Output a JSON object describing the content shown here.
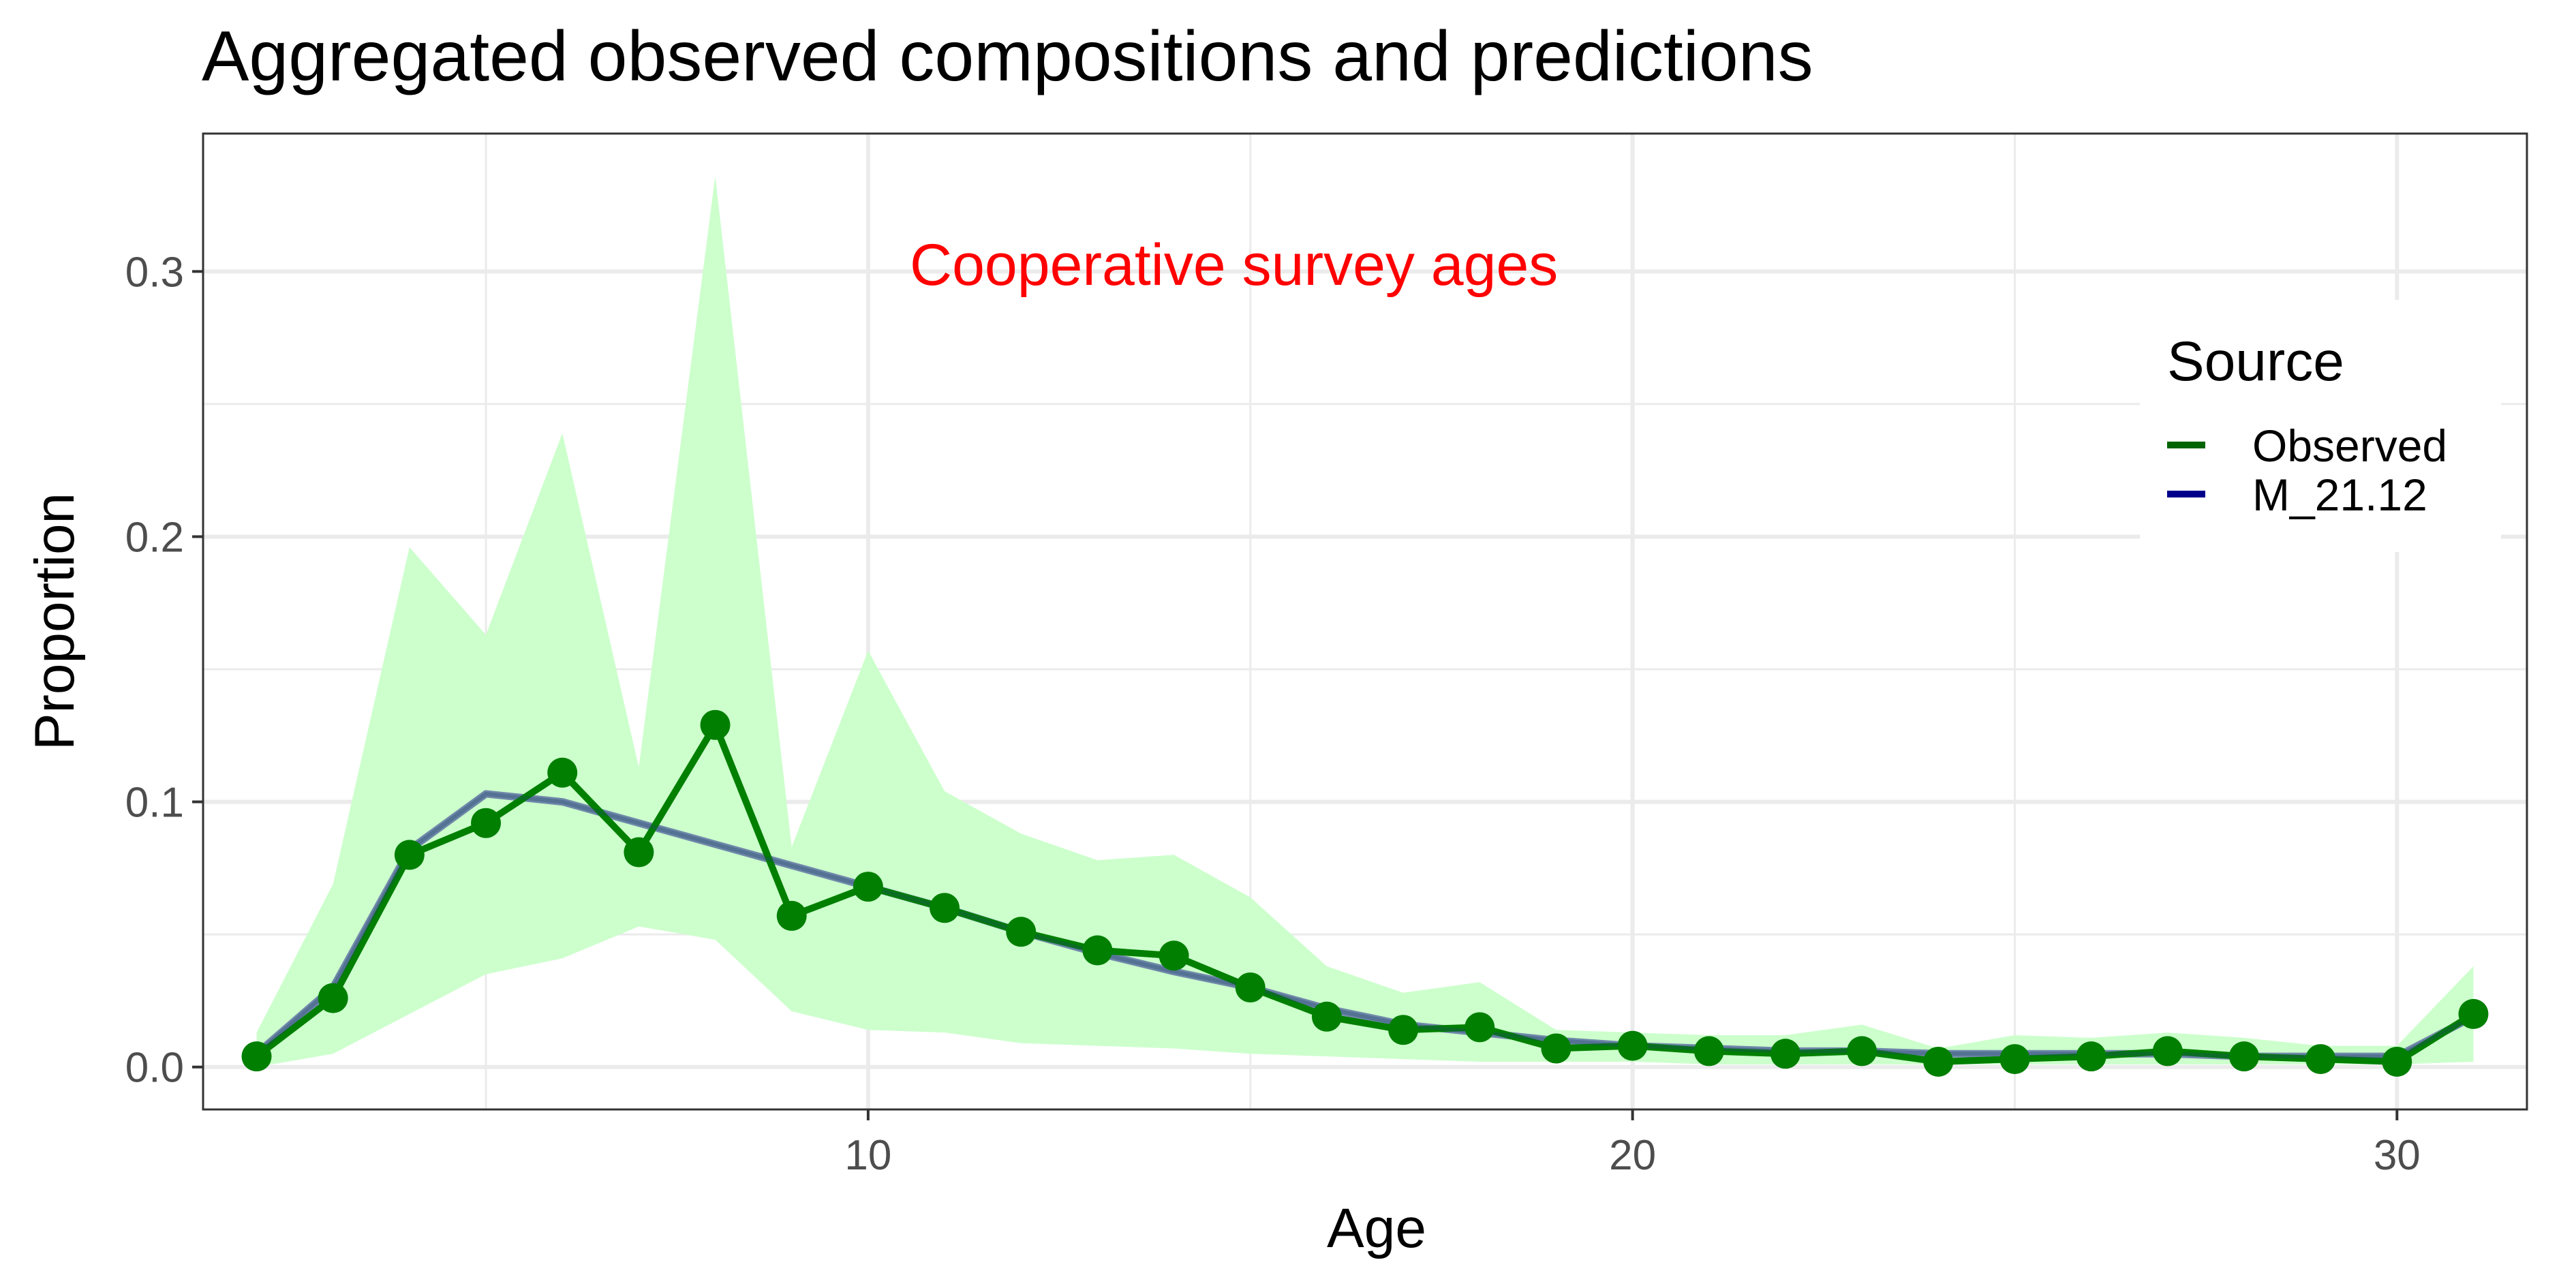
{
  "chart_data": {
    "type": "line",
    "title": "Aggregated observed compositions and predictions",
    "xlabel": "Age",
    "ylabel": "Proportion",
    "xlim": [
      1.3,
      31.7
    ],
    "ylim": [
      -0.016,
      0.352
    ],
    "x_ticks": [
      10,
      20,
      30
    ],
    "x_tick_labels": [
      "10",
      "20",
      "30"
    ],
    "y_ticks": [
      0.0,
      0.1,
      0.2,
      0.3
    ],
    "y_tick_labels": [
      "0.0",
      "0.1",
      "0.2",
      "0.3"
    ],
    "grid": true,
    "annotation": "Cooperative survey ages",
    "legend": {
      "title": "Source",
      "position": "right",
      "entries": [
        {
          "label": "Observed",
          "color": "#006400"
        },
        {
          "label": "M_21.12",
          "color": "#00008b"
        }
      ]
    },
    "x": [
      2,
      3,
      4,
      5,
      6,
      7,
      8,
      9,
      10,
      11,
      12,
      13,
      14,
      15,
      16,
      17,
      18,
      19,
      20,
      21,
      22,
      23,
      24,
      25,
      26,
      27,
      28,
      29,
      30,
      31
    ],
    "band": {
      "color": "#ccffcc",
      "upper": [
        0.013,
        0.069,
        0.196,
        0.163,
        0.239,
        0.113,
        0.336,
        0.083,
        0.157,
        0.104,
        0.088,
        0.078,
        0.08,
        0.064,
        0.038,
        0.028,
        0.032,
        0.014,
        0.013,
        0.012,
        0.012,
        0.016,
        0.007,
        0.012,
        0.011,
        0.013,
        0.011,
        0.008,
        0.008,
        0.038
      ],
      "lower": [
        0.0,
        0.005,
        0.02,
        0.035,
        0.041,
        0.053,
        0.048,
        0.021,
        0.014,
        0.013,
        0.009,
        0.008,
        0.007,
        0.005,
        0.004,
        0.003,
        0.002,
        0.002,
        0.002,
        0.001,
        0.001,
        0.001,
        0.001,
        0.001,
        0.001,
        0.001,
        0.001,
        0.001,
        0.001,
        0.002
      ]
    },
    "series": [
      {
        "name": "Observed",
        "color": "#007f00",
        "values": [
          0.004,
          0.026,
          0.08,
          0.092,
          0.111,
          0.081,
          0.129,
          0.057,
          0.068,
          0.06,
          0.051,
          0.044,
          0.042,
          0.03,
          0.019,
          0.014,
          0.015,
          0.007,
          0.008,
          0.006,
          0.005,
          0.006,
          0.002,
          0.003,
          0.004,
          0.006,
          0.004,
          0.003,
          0.002,
          0.02
        ]
      },
      {
        "name": "M_21.12",
        "color": "#6a82a8",
        "values": [
          0.005,
          0.03,
          0.082,
          0.103,
          0.1,
          0.092,
          0.084,
          0.076,
          0.068,
          0.06,
          0.051,
          0.043,
          0.036,
          0.03,
          0.022,
          0.016,
          0.013,
          0.01,
          0.008,
          0.007,
          0.006,
          0.006,
          0.005,
          0.005,
          0.005,
          0.005,
          0.004,
          0.004,
          0.004,
          0.019
        ]
      }
    ]
  }
}
